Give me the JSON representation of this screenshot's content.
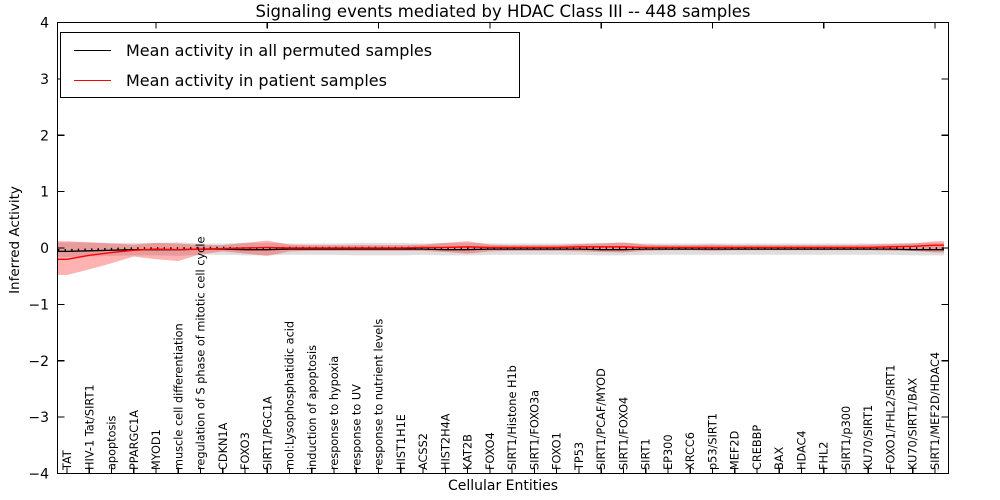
{
  "chart_data": {
    "type": "line",
    "title": "Signaling events mediated by HDAC Class III -- 448 samples",
    "xlabel": "Cellular Entities",
    "ylabel": "Inferred Activity",
    "ylim": [
      -4,
      4
    ],
    "grid": false,
    "ytick_labels": [
      "4",
      "3",
      "2",
      "1",
      "0",
      "−1",
      "−2",
      "−3",
      "−4"
    ],
    "legend_position": "upper left",
    "legend_entries": [
      {
        "label": "Mean activity in all permuted samples",
        "color": "#000000"
      },
      {
        "label": "Mean activity in patient samples",
        "color": "#ff0000"
      }
    ],
    "categories": [
      "TAT",
      "HIV-1 Tat/SIRT1",
      "apoptosis",
      "PPARGC1A",
      "MYOD1",
      "muscle cell differentiation",
      "regulation of S phase of mitotic cell cycle",
      "CDKN1A",
      "FOXO3",
      "SIRT1/PGC1A",
      "mol:Lysophosphatidic acid",
      "induction of apoptosis",
      "response to hypoxia",
      "response to UV",
      "response to nutrient levels",
      "HIST1H1E",
      "ACSS2",
      "HIST2H4A",
      "KAT2B",
      "FOXO4",
      "SIRT1/Histone H1b",
      "SIRT1/FOXO3a",
      "FOXO1",
      "TP53",
      "SIRT1/PCAF/MYOD",
      "SIRT1/FOXO4",
      "SIRT1",
      "EP300",
      "XRCC6",
      "p53/SIRT1",
      "MEF2D",
      "CREBBP",
      "BAX",
      "HDAC4",
      "FHL2",
      "SIRT1/p300",
      "KU70/SIRT1",
      "FOXO1/FHL2/SIRT1",
      "KU70/SIRT1/BAX",
      "SIRT1/MEF2D/HDAC4"
    ],
    "series": [
      {
        "name": "Mean activity in all permuted samples",
        "color": "#000000",
        "band_color": "rgba(0,0,0,0.13)",
        "values": [
          -0.06,
          -0.05,
          -0.04,
          -0.03,
          -0.03,
          -0.03,
          -0.02,
          -0.02,
          -0.03,
          -0.03,
          -0.02,
          -0.02,
          -0.02,
          -0.02,
          -0.02,
          -0.02,
          -0.02,
          -0.03,
          -0.03,
          -0.02,
          -0.02,
          -0.02,
          -0.02,
          -0.02,
          -0.03,
          -0.03,
          -0.02,
          -0.02,
          -0.02,
          -0.02,
          -0.02,
          -0.02,
          -0.02,
          -0.02,
          -0.02,
          -0.02,
          -0.02,
          -0.02,
          -0.03,
          -0.03
        ],
        "band_lo": [
          -0.16,
          -0.15,
          -0.14,
          -0.13,
          -0.13,
          -0.14,
          -0.12,
          -0.12,
          -0.13,
          -0.13,
          -0.12,
          -0.12,
          -0.12,
          -0.13,
          -0.13,
          -0.13,
          -0.12,
          -0.13,
          -0.13,
          -0.12,
          -0.12,
          -0.12,
          -0.12,
          -0.12,
          -0.13,
          -0.13,
          -0.12,
          -0.12,
          -0.12,
          -0.12,
          -0.12,
          -0.12,
          -0.12,
          -0.12,
          -0.12,
          -0.12,
          -0.12,
          -0.12,
          -0.13,
          -0.13
        ],
        "band_hi": [
          0.1,
          0.1,
          0.09,
          0.09,
          0.09,
          0.1,
          0.08,
          0.08,
          0.09,
          0.09,
          0.08,
          0.08,
          0.08,
          0.09,
          0.09,
          0.09,
          0.08,
          0.09,
          0.09,
          0.08,
          0.08,
          0.08,
          0.08,
          0.08,
          0.09,
          0.09,
          0.08,
          0.08,
          0.08,
          0.08,
          0.08,
          0.08,
          0.08,
          0.08,
          0.08,
          0.08,
          0.08,
          0.08,
          0.09,
          0.09
        ]
      },
      {
        "name": "Mean activity in patient samples",
        "color": "#ff0000",
        "band_color": "rgba(255,0,0,0.30)",
        "values": [
          -0.2,
          -0.13,
          -0.08,
          -0.04,
          -0.02,
          -0.03,
          -0.02,
          -0.01,
          0.0,
          0.01,
          0.0,
          0.0,
          0.0,
          0.0,
          0.0,
          0.0,
          0.01,
          0.01,
          0.02,
          0.01,
          0.01,
          0.01,
          0.01,
          0.02,
          0.02,
          0.02,
          0.01,
          0.01,
          0.01,
          0.01,
          0.01,
          0.01,
          0.01,
          0.01,
          0.01,
          0.01,
          0.01,
          0.02,
          0.03,
          0.05
        ],
        "band_lo": [
          -0.48,
          -0.38,
          -0.27,
          -0.15,
          -0.2,
          -0.23,
          -0.11,
          -0.06,
          -0.1,
          -0.14,
          -0.06,
          -0.05,
          -0.05,
          -0.05,
          -0.05,
          -0.05,
          -0.05,
          -0.07,
          -0.1,
          -0.06,
          -0.05,
          -0.05,
          -0.05,
          -0.06,
          -0.07,
          -0.08,
          -0.05,
          -0.04,
          -0.04,
          -0.05,
          -0.04,
          -0.04,
          -0.04,
          -0.04,
          -0.04,
          -0.04,
          -0.04,
          -0.05,
          -0.05,
          -0.08
        ],
        "band_hi": [
          0.12,
          0.1,
          0.08,
          0.06,
          0.09,
          0.08,
          0.05,
          0.05,
          0.09,
          0.13,
          0.06,
          0.05,
          0.05,
          0.05,
          0.05,
          0.05,
          0.06,
          0.09,
          0.12,
          0.06,
          0.05,
          0.05,
          0.05,
          0.07,
          0.08,
          0.1,
          0.06,
          0.05,
          0.05,
          0.06,
          0.05,
          0.05,
          0.05,
          0.05,
          0.05,
          0.05,
          0.06,
          0.07,
          0.08,
          0.12
        ]
      }
    ]
  }
}
